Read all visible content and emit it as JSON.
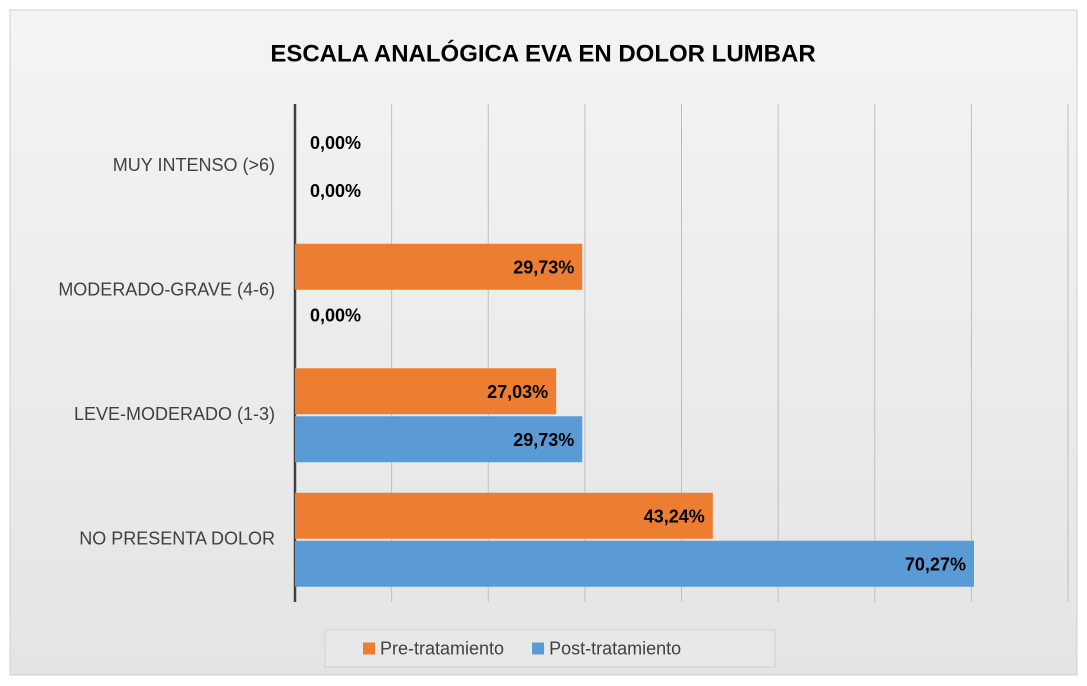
{
  "chart_data": {
    "type": "barh",
    "title": "ESCALA ANALÓGICA EVA EN DOLOR LUMBAR",
    "categories": [
      "MUY INTENSO (>6)",
      "MODERADO-GRAVE (4-6)",
      "LEVE-MODERADO (1-3)",
      "NO PRESENTA DOLOR"
    ],
    "series": [
      {
        "name": "Pre-tratamiento",
        "color": "#ed7d31",
        "values": [
          0,
          29.73,
          27.03,
          43.24
        ],
        "value_labels": [
          "0,00%",
          "29,73%",
          "27,03%",
          "43,24%"
        ]
      },
      {
        "name": "Post-tratamiento",
        "color": "#5b9bd5",
        "values": [
          0,
          0,
          29.73,
          70.27
        ],
        "value_labels": [
          "0,00%",
          "0,00%",
          "29,73%",
          "70,27%"
        ]
      }
    ],
    "xlim": [
      0,
      80
    ],
    "xticks": [
      0,
      10,
      20,
      30,
      40,
      50,
      60,
      70,
      80
    ],
    "grid": true,
    "legend": "bottom"
  }
}
